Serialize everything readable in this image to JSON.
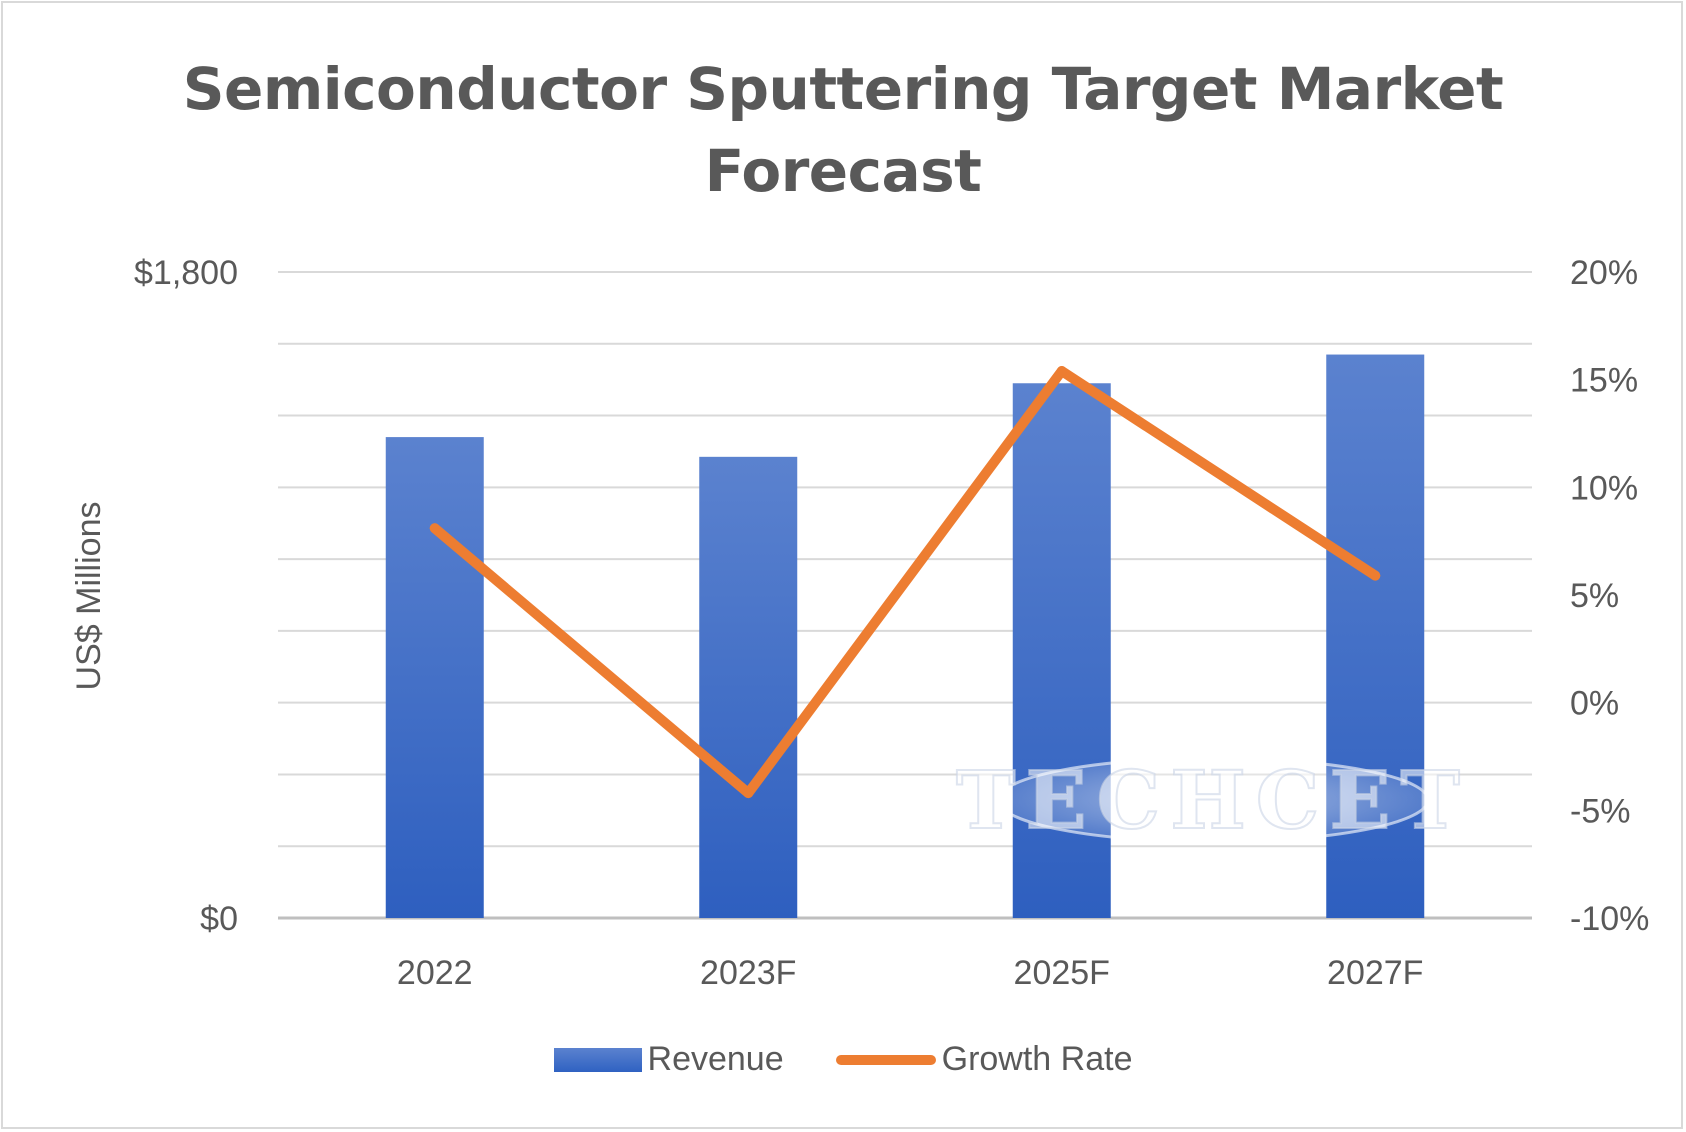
{
  "chart_data": {
    "type": "bar+line",
    "title_lines": [
      "Semiconductor Sputtering Target Market",
      "Forecast"
    ],
    "categories": [
      "2022",
      "2023F",
      "2025F",
      "2027F"
    ],
    "series": [
      {
        "name": "Revenue",
        "type": "bar",
        "axis": "left",
        "values": [
          1340,
          1285,
          1490,
          1570
        ]
      },
      {
        "name": "Growth Rate",
        "type": "line",
        "axis": "right",
        "values": [
          8.1,
          -4.2,
          15.4,
          5.9
        ]
      }
    ],
    "ylabel": "US$ Millions",
    "left_axis": {
      "range": [
        0,
        1800
      ],
      "gridlines": 9,
      "tick_labels": [
        "$0",
        "$1,800"
      ]
    },
    "right_axis": {
      "range": [
        -10,
        20
      ],
      "step": 5,
      "tick_labels": [
        "-10%",
        "-5%",
        "0%",
        "5%",
        "10%",
        "15%",
        "20%"
      ]
    },
    "grid": true,
    "legend": "bottom",
    "watermark": "TECHCET",
    "colors": {
      "bar": "#3f6fcc",
      "line": "#ed7d31",
      "grid": "#d9d9d9",
      "text": "#595959"
    }
  }
}
